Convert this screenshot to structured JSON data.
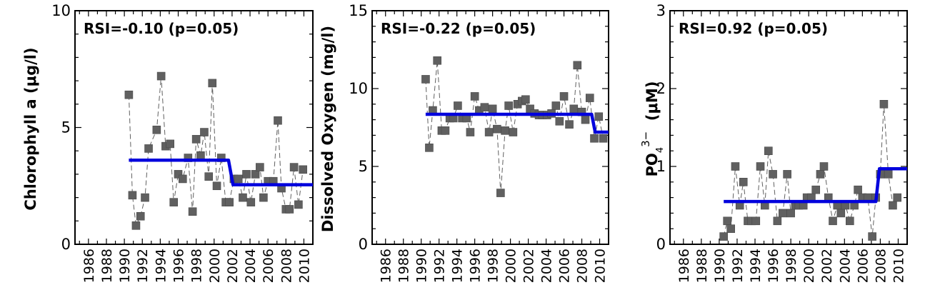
{
  "chart_data": [
    {
      "type": "scatter",
      "ylabel": "Chlorophyll a (μg/l)",
      "annotation": "RSI=-0.10 (p=0.05)",
      "ylim": [
        0,
        10
      ],
      "yticks": [
        0,
        5,
        10
      ],
      "xlim": [
        1984.5,
        2011
      ],
      "xticks": [
        1986,
        1988,
        1990,
        1992,
        1994,
        1996,
        1998,
        2000,
        2002,
        2004,
        2006,
        2008,
        2010
      ],
      "points": [
        [
          1990.5,
          6.4
        ],
        [
          1990.9,
          2.1
        ],
        [
          1991.3,
          0.8
        ],
        [
          1991.8,
          1.2
        ],
        [
          1992.3,
          2.0
        ],
        [
          1992.7,
          4.1
        ],
        [
          1993.6,
          4.9
        ],
        [
          1994.1,
          7.2
        ],
        [
          1994.6,
          4.2
        ],
        [
          1995.1,
          4.3
        ],
        [
          1995.5,
          1.8
        ],
        [
          1996.0,
          3.0
        ],
        [
          1996.5,
          2.8
        ],
        [
          1997.1,
          3.7
        ],
        [
          1997.6,
          1.4
        ],
        [
          1998.0,
          4.5
        ],
        [
          1998.5,
          3.8
        ],
        [
          1998.9,
          4.8
        ],
        [
          1999.4,
          2.9
        ],
        [
          1999.8,
          6.9
        ],
        [
          2000.3,
          2.5
        ],
        [
          2000.8,
          3.7
        ],
        [
          2001.3,
          1.8
        ],
        [
          2001.7,
          1.8
        ],
        [
          2002.2,
          2.8
        ],
        [
          2002.7,
          2.8
        ],
        [
          2003.2,
          2.0
        ],
        [
          2003.6,
          3.0
        ],
        [
          2004.1,
          1.8
        ],
        [
          2004.6,
          3.0
        ],
        [
          2005.1,
          3.3
        ],
        [
          2005.5,
          2.0
        ],
        [
          2006.0,
          2.7
        ],
        [
          2006.6,
          2.7
        ],
        [
          2007.1,
          5.3
        ],
        [
          2007.5,
          2.4
        ],
        [
          2008.0,
          1.5
        ],
        [
          2008.4,
          1.5
        ],
        [
          2008.9,
          3.3
        ],
        [
          2009.4,
          1.7
        ],
        [
          2009.9,
          3.2
        ]
      ],
      "regime_line": [
        [
          1990.5,
          3.6
        ],
        [
          2001.6,
          3.6
        ],
        [
          2002.1,
          2.55
        ],
        [
          2011,
          2.55
        ]
      ]
    },
    {
      "type": "scatter",
      "ylabel": "Dissolved Oxygen (mg/l)",
      "annotation": "RSI=-0.22 (p=0.05)",
      "ylim": [
        0,
        15
      ],
      "yticks": [
        0,
        5,
        10,
        15
      ],
      "xlim": [
        1984.5,
        2011
      ],
      "xticks": [
        1986,
        1988,
        1990,
        1992,
        1994,
        1996,
        1998,
        2000,
        2002,
        2004,
        2006,
        2008,
        2010
      ],
      "points": [
        [
          1990.5,
          10.6
        ],
        [
          1990.9,
          6.2
        ],
        [
          1991.3,
          8.6
        ],
        [
          1991.8,
          11.8
        ],
        [
          1992.3,
          7.3
        ],
        [
          1992.7,
          7.3
        ],
        [
          1993.2,
          8.1
        ],
        [
          1993.6,
          8.1
        ],
        [
          1994.1,
          8.9
        ],
        [
          1994.6,
          8.1
        ],
        [
          1995.1,
          8.1
        ],
        [
          1995.5,
          7.2
        ],
        [
          1996.0,
          9.5
        ],
        [
          1996.5,
          8.6
        ],
        [
          1997.1,
          8.8
        ],
        [
          1997.6,
          7.2
        ],
        [
          1998.0,
          8.7
        ],
        [
          1998.5,
          7.4
        ],
        [
          1998.9,
          3.3
        ],
        [
          1999.4,
          7.3
        ],
        [
          1999.8,
          8.9
        ],
        [
          2000.3,
          7.2
        ],
        [
          2000.8,
          9.0
        ],
        [
          2001.3,
          9.2
        ],
        [
          2001.7,
          9.3
        ],
        [
          2002.2,
          8.7
        ],
        [
          2002.7,
          8.4
        ],
        [
          2003.2,
          8.3
        ],
        [
          2003.6,
          8.3
        ],
        [
          2004.1,
          8.3
        ],
        [
          2004.6,
          8.4
        ],
        [
          2005.1,
          8.9
        ],
        [
          2005.5,
          7.9
        ],
        [
          2006.0,
          9.5
        ],
        [
          2006.6,
          7.7
        ],
        [
          2007.1,
          8.7
        ],
        [
          2007.5,
          11.5
        ],
        [
          2008.0,
          8.5
        ],
        [
          2008.4,
          8.0
        ],
        [
          2008.9,
          9.4
        ],
        [
          2009.4,
          6.8
        ],
        [
          2009.9,
          8.2
        ],
        [
          2010.4,
          6.8
        ]
      ],
      "regime_line": [
        [
          1990.5,
          8.35
        ],
        [
          2009.1,
          8.35
        ],
        [
          2009.5,
          7.2
        ],
        [
          2011,
          7.2
        ]
      ]
    },
    {
      "type": "scatter",
      "ylabel": "PO4 3− (μM)",
      "annotation": "RSI=0.92 (p=0.05)",
      "ylim": [
        0,
        3
      ],
      "yticks": [
        0,
        1,
        2,
        3
      ],
      "xlim": [
        1984.5,
        2011
      ],
      "xticks": [
        1986,
        1988,
        1990,
        1992,
        1994,
        1996,
        1998,
        2000,
        2002,
        2004,
        2006,
        2008,
        2010
      ],
      "points": [
        [
          1990.5,
          0.1
        ],
        [
          1990.9,
          0.3
        ],
        [
          1991.3,
          0.2
        ],
        [
          1991.8,
          1.0
        ],
        [
          1992.3,
          0.5
        ],
        [
          1992.7,
          0.8
        ],
        [
          1993.2,
          0.3
        ],
        [
          1993.6,
          0.3
        ],
        [
          1994.1,
          0.3
        ],
        [
          1994.6,
          1.0
        ],
        [
          1995.1,
          0.5
        ],
        [
          1995.5,
          1.2
        ],
        [
          1996.0,
          0.9
        ],
        [
          1996.5,
          0.3
        ],
        [
          1997.1,
          0.4
        ],
        [
          1997.6,
          0.9
        ],
        [
          1998.0,
          0.4
        ],
        [
          1998.5,
          0.5
        ],
        [
          1998.9,
          0.5
        ],
        [
          1999.4,
          0.5
        ],
        [
          1999.8,
          0.6
        ],
        [
          2000.3,
          0.6
        ],
        [
          2000.8,
          0.7
        ],
        [
          2001.3,
          0.9
        ],
        [
          2001.7,
          1.0
        ],
        [
          2002.2,
          0.6
        ],
        [
          2002.7,
          0.3
        ],
        [
          2003.2,
          0.5
        ],
        [
          2003.6,
          0.4
        ],
        [
          2004.1,
          0.5
        ],
        [
          2004.6,
          0.3
        ],
        [
          2005.1,
          0.5
        ],
        [
          2005.5,
          0.7
        ],
        [
          2006.0,
          0.6
        ],
        [
          2006.6,
          0.6
        ],
        [
          2007.1,
          0.1
        ],
        [
          2007.5,
          0.6
        ],
        [
          2008.0,
          0.9
        ],
        [
          2008.4,
          1.8
        ],
        [
          2008.9,
          0.9
        ],
        [
          2009.4,
          0.5
        ],
        [
          2009.9,
          0.6
        ]
      ],
      "regime_line": [
        [
          1990.5,
          0.55
        ],
        [
          2007.5,
          0.55
        ],
        [
          2007.9,
          0.97
        ],
        [
          2011,
          0.97
        ]
      ]
    }
  ],
  "colors": {
    "marker": "#606060",
    "marker_line": "#606060",
    "regime": "#0000dd"
  }
}
